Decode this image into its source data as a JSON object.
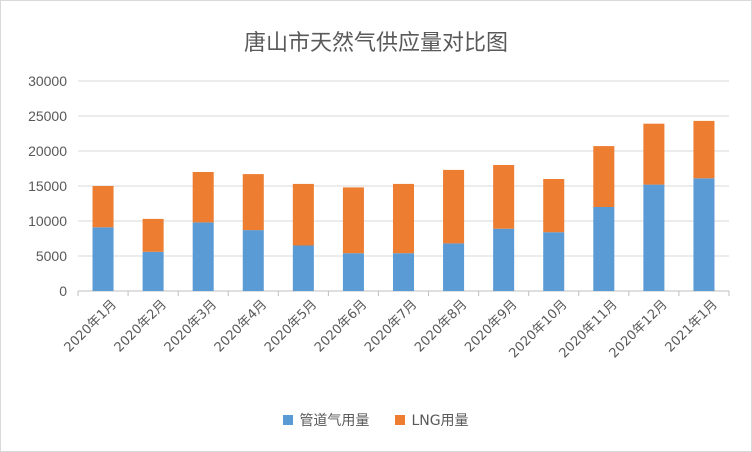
{
  "chart_data": {
    "type": "bar",
    "stacked": true,
    "title": "唐山市天然气供应量对比图",
    "categories": [
      "2020年1月",
      "2020年2月",
      "2020年3月",
      "2020年4月",
      "2020年5月",
      "2020年6月",
      "2020年7月",
      "2020年8月",
      "2020年9月",
      "2020年10月",
      "2020年11月",
      "2020年12月",
      "2021年1月"
    ],
    "series": [
      {
        "name": "管道气用量",
        "color": "#5b9bd5",
        "values": [
          9100,
          5600,
          9800,
          8700,
          6500,
          5400,
          5400,
          6800,
          8900,
          8400,
          12000,
          15200,
          16100
        ]
      },
      {
        "name": "LNG用量",
        "color": "#ed7d31",
        "values": [
          5900,
          4700,
          7200,
          8000,
          8800,
          9400,
          9900,
          10500,
          9100,
          7600,
          8700,
          8700,
          8200
        ]
      }
    ],
    "ylim": [
      0,
      30000
    ],
    "yticks": [
      "0",
      "5000",
      "10000",
      "15000",
      "20000",
      "25000",
      "30000"
    ],
    "grid": true,
    "legend_position": "bottom"
  }
}
